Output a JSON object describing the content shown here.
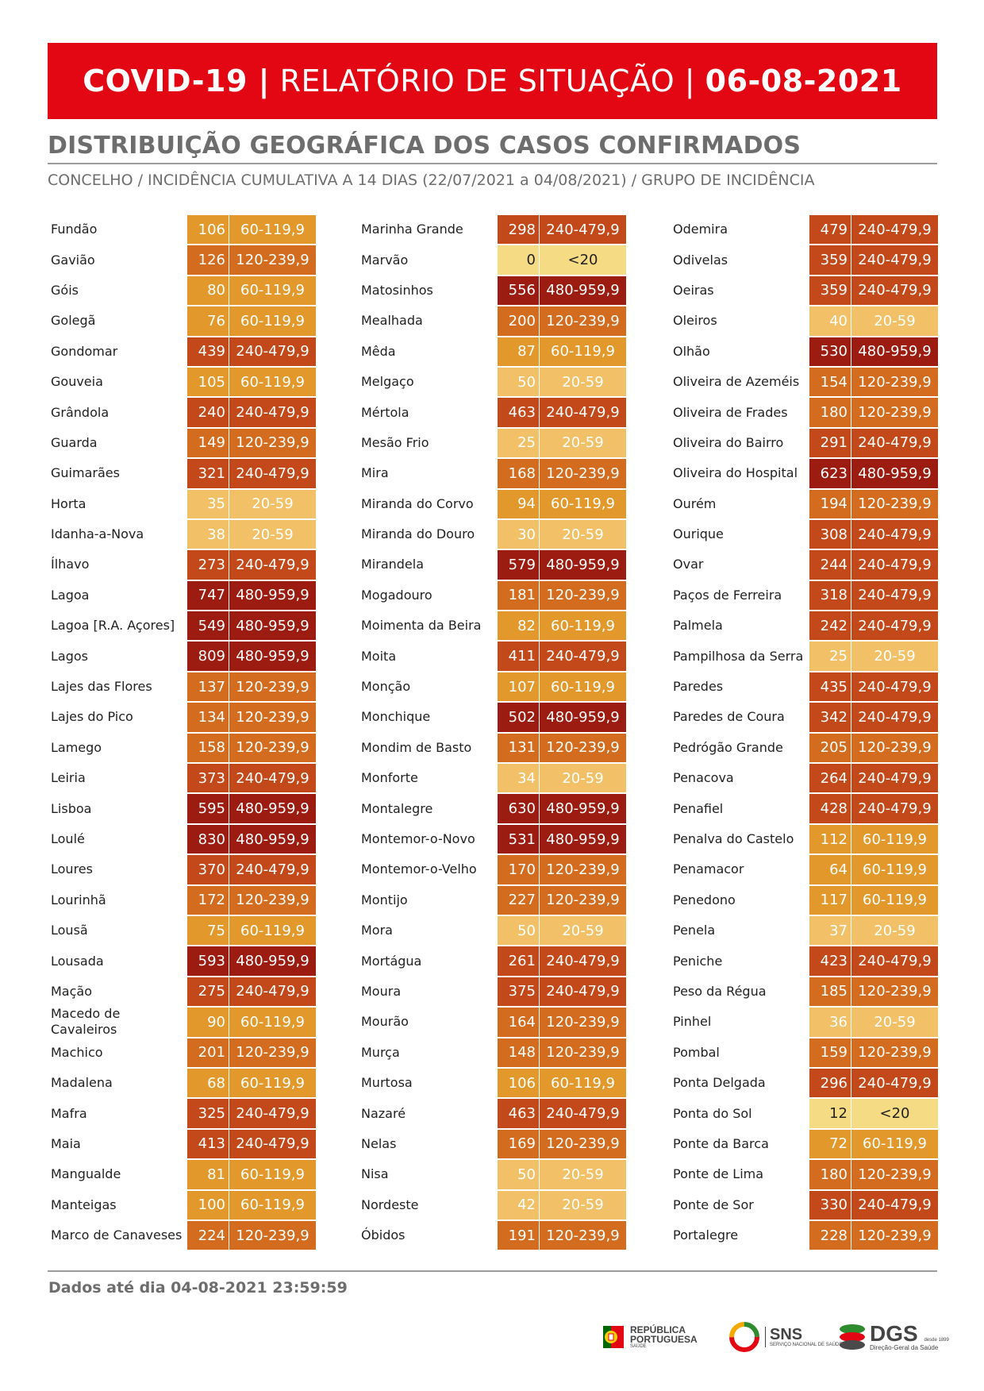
{
  "header": {
    "part1": "COVID-19 |",
    "part2": "RELATÓRIO DE SITUAÇÃO |",
    "date": "06-08-2021"
  },
  "section": {
    "title": "DISTRIBUIÇÃO GEOGRÁFICA DOS CASOS CONFIRMADOS",
    "subtitle": "CONCELHO / INCIDÊNCIA CUMULATIVA A 14 DIAS (22/07/2021 a 04/08/2021) / GRUPO DE INCIDÊNCIA"
  },
  "columns": [
    [
      {
        "name": "Fundão",
        "value": "106",
        "group": "60-119,9"
      },
      {
        "name": "Gavião",
        "value": "126",
        "group": "120-239,9"
      },
      {
        "name": "Góis",
        "value": "80",
        "group": "60-119,9"
      },
      {
        "name": "Golegã",
        "value": "76",
        "group": "60-119,9"
      },
      {
        "name": "Gondomar",
        "value": "439",
        "group": "240-479,9"
      },
      {
        "name": "Gouveia",
        "value": "105",
        "group": "60-119,9"
      },
      {
        "name": "Grândola",
        "value": "240",
        "group": "240-479,9"
      },
      {
        "name": "Guarda",
        "value": "149",
        "group": "120-239,9"
      },
      {
        "name": "Guimarães",
        "value": "321",
        "group": "240-479,9"
      },
      {
        "name": "Horta",
        "value": "35",
        "group": "20-59"
      },
      {
        "name": "Idanha-a-Nova",
        "value": "38",
        "group": "20-59"
      },
      {
        "name": "Ílhavo",
        "value": "273",
        "group": "240-479,9"
      },
      {
        "name": "Lagoa",
        "value": "747",
        "group": "480-959,9"
      },
      {
        "name": "Lagoa [R.A. Açores]",
        "value": "549",
        "group": "480-959,9"
      },
      {
        "name": "Lagos",
        "value": "809",
        "group": "480-959,9"
      },
      {
        "name": "Lajes das Flores",
        "value": "137",
        "group": "120-239,9"
      },
      {
        "name": "Lajes do Pico",
        "value": "134",
        "group": "120-239,9"
      },
      {
        "name": "Lamego",
        "value": "158",
        "group": "120-239,9"
      },
      {
        "name": "Leiria",
        "value": "373",
        "group": "240-479,9"
      },
      {
        "name": "Lisboa",
        "value": "595",
        "group": "480-959,9"
      },
      {
        "name": "Loulé",
        "value": "830",
        "group": "480-959,9"
      },
      {
        "name": "Loures",
        "value": "370",
        "group": "240-479,9"
      },
      {
        "name": "Lourinhã",
        "value": "172",
        "group": "120-239,9"
      },
      {
        "name": "Lousã",
        "value": "75",
        "group": "60-119,9"
      },
      {
        "name": "Lousada",
        "value": "593",
        "group": "480-959,9"
      },
      {
        "name": "Mação",
        "value": "275",
        "group": "240-479,9"
      },
      {
        "name": "Macedo de Cavaleiros",
        "value": "90",
        "group": "60-119,9"
      },
      {
        "name": "Machico",
        "value": "201",
        "group": "120-239,9"
      },
      {
        "name": "Madalena",
        "value": "68",
        "group": "60-119,9"
      },
      {
        "name": "Mafra",
        "value": "325",
        "group": "240-479,9"
      },
      {
        "name": "Maia",
        "value": "413",
        "group": "240-479,9"
      },
      {
        "name": "Mangualde",
        "value": "81",
        "group": "60-119,9"
      },
      {
        "name": "Manteigas",
        "value": "100",
        "group": "60-119,9"
      },
      {
        "name": "Marco de Canaveses",
        "value": "224",
        "group": "120-239,9"
      }
    ],
    [
      {
        "name": "Marinha Grande",
        "value": "298",
        "group": "240-479,9"
      },
      {
        "name": "Marvão",
        "value": "0",
        "group": "<20"
      },
      {
        "name": "Matosinhos",
        "value": "556",
        "group": "480-959,9"
      },
      {
        "name": "Mealhada",
        "value": "200",
        "group": "120-239,9"
      },
      {
        "name": "Mêda",
        "value": "87",
        "group": "60-119,9"
      },
      {
        "name": "Melgaço",
        "value": "50",
        "group": "20-59"
      },
      {
        "name": "Mértola",
        "value": "463",
        "group": "240-479,9"
      },
      {
        "name": "Mesão Frio",
        "value": "25",
        "group": "20-59"
      },
      {
        "name": "Mira",
        "value": "168",
        "group": "120-239,9"
      },
      {
        "name": "Miranda do Corvo",
        "value": "94",
        "group": "60-119,9"
      },
      {
        "name": "Miranda do Douro",
        "value": "30",
        "group": "20-59"
      },
      {
        "name": "Mirandela",
        "value": "579",
        "group": "480-959,9"
      },
      {
        "name": "Mogadouro",
        "value": "181",
        "group": "120-239,9"
      },
      {
        "name": "Moimenta da Beira",
        "value": "82",
        "group": "60-119,9"
      },
      {
        "name": "Moita",
        "value": "411",
        "group": "240-479,9"
      },
      {
        "name": "Monção",
        "value": "107",
        "group": "60-119,9"
      },
      {
        "name": "Monchique",
        "value": "502",
        "group": "480-959,9"
      },
      {
        "name": "Mondim de Basto",
        "value": "131",
        "group": "120-239,9"
      },
      {
        "name": "Monforte",
        "value": "34",
        "group": "20-59"
      },
      {
        "name": "Montalegre",
        "value": "630",
        "group": "480-959,9"
      },
      {
        "name": "Montemor-o-Novo",
        "value": "531",
        "group": "480-959,9"
      },
      {
        "name": "Montemor-o-Velho",
        "value": "170",
        "group": "120-239,9"
      },
      {
        "name": "Montijo",
        "value": "227",
        "group": "120-239,9"
      },
      {
        "name": "Mora",
        "value": "50",
        "group": "20-59"
      },
      {
        "name": "Mortágua",
        "value": "261",
        "group": "240-479,9"
      },
      {
        "name": "Moura",
        "value": "375",
        "group": "240-479,9"
      },
      {
        "name": "Mourão",
        "value": "164",
        "group": "120-239,9"
      },
      {
        "name": "Murça",
        "value": "148",
        "group": "120-239,9"
      },
      {
        "name": "Murtosa",
        "value": "106",
        "group": "60-119,9"
      },
      {
        "name": "Nazaré",
        "value": "463",
        "group": "240-479,9"
      },
      {
        "name": "Nelas",
        "value": "169",
        "group": "120-239,9"
      },
      {
        "name": "Nisa",
        "value": "50",
        "group": "20-59"
      },
      {
        "name": "Nordeste",
        "value": "42",
        "group": "20-59"
      },
      {
        "name": "Óbidos",
        "value": "191",
        "group": "120-239,9"
      }
    ],
    [
      {
        "name": "Odemira",
        "value": "479",
        "group": "240-479,9"
      },
      {
        "name": "Odivelas",
        "value": "359",
        "group": "240-479,9"
      },
      {
        "name": "Oeiras",
        "value": "359",
        "group": "240-479,9"
      },
      {
        "name": "Oleiros",
        "value": "40",
        "group": "20-59"
      },
      {
        "name": "Olhão",
        "value": "530",
        "group": "480-959,9"
      },
      {
        "name": "Oliveira de Azeméis",
        "value": "154",
        "group": "120-239,9"
      },
      {
        "name": "Oliveira de Frades",
        "value": "180",
        "group": "120-239,9"
      },
      {
        "name": "Oliveira do Bairro",
        "value": "291",
        "group": "240-479,9"
      },
      {
        "name": "Oliveira do Hospital",
        "value": "623",
        "group": "480-959,9"
      },
      {
        "name": "Ourém",
        "value": "194",
        "group": "120-239,9"
      },
      {
        "name": "Ourique",
        "value": "308",
        "group": "240-479,9"
      },
      {
        "name": "Ovar",
        "value": "244",
        "group": "240-479,9"
      },
      {
        "name": "Paços de Ferreira",
        "value": "318",
        "group": "240-479,9"
      },
      {
        "name": "Palmela",
        "value": "242",
        "group": "240-479,9"
      },
      {
        "name": "Pampilhosa da Serra",
        "value": "25",
        "group": "20-59"
      },
      {
        "name": "Paredes",
        "value": "435",
        "group": "240-479,9"
      },
      {
        "name": "Paredes de Coura",
        "value": "342",
        "group": "240-479,9"
      },
      {
        "name": "Pedrógão Grande",
        "value": "205",
        "group": "120-239,9"
      },
      {
        "name": "Penacova",
        "value": "264",
        "group": "240-479,9"
      },
      {
        "name": "Penafiel",
        "value": "428",
        "group": "240-479,9"
      },
      {
        "name": "Penalva do Castelo",
        "value": "112",
        "group": "60-119,9"
      },
      {
        "name": "Penamacor",
        "value": "64",
        "group": "60-119,9"
      },
      {
        "name": "Penedono",
        "value": "117",
        "group": "60-119,9"
      },
      {
        "name": "Penela",
        "value": "37",
        "group": "20-59"
      },
      {
        "name": "Peniche",
        "value": "423",
        "group": "240-479,9"
      },
      {
        "name": "Peso da Régua",
        "value": "185",
        "group": "120-239,9"
      },
      {
        "name": "Pinhel",
        "value": "36",
        "group": "20-59"
      },
      {
        "name": "Pombal",
        "value": "159",
        "group": "120-239,9"
      },
      {
        "name": "Ponta Delgada",
        "value": "296",
        "group": "240-479,9"
      },
      {
        "name": "Ponta do Sol",
        "value": "12",
        "group": "<20"
      },
      {
        "name": "Ponte da Barca",
        "value": "72",
        "group": "60-119,9"
      },
      {
        "name": "Ponte de Lima",
        "value": "180",
        "group": "120-239,9"
      },
      {
        "name": "Ponte de Sor",
        "value": "330",
        "group": "240-479,9"
      },
      {
        "name": "Portalegre",
        "value": "228",
        "group": "120-239,9"
      }
    ]
  ],
  "group_colors": {
    "<20": "#f5db84",
    "20-59": "#f1c067",
    "60-119,9": "#e3982c",
    "120-239,9": "#d36c1e",
    "240-479,9": "#c4491a",
    "480-959,9": "#9d1c12"
  },
  "footer": {
    "data_until": "Dados até dia 04-08-2021 23:59:59"
  },
  "logos": {
    "republica": {
      "line1": "REPÚBLICA",
      "line2": "PORTUGUESA",
      "line3": "SAÚDE"
    },
    "sns": {
      "main": "SNS",
      "sub": "SERVIÇO NACIONAL DE SAÚDE"
    },
    "dgs": {
      "main": "DGS",
      "sub": "Direção-Geral da Saúde",
      "since": "desde 1899"
    }
  }
}
